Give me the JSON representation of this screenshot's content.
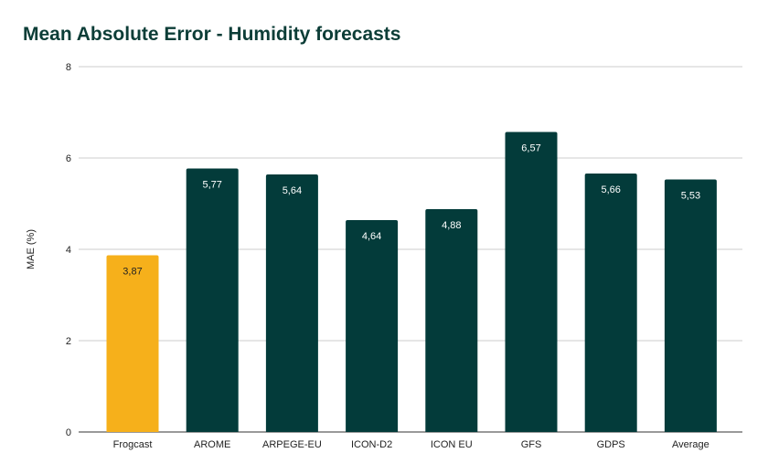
{
  "chart_data": {
    "type": "bar",
    "title": "Mean Absolute Error - Humidity forecasts",
    "xlabel": "",
    "ylabel": "MAE (%)",
    "ylim": [
      0,
      8
    ],
    "yticks": [
      0,
      2,
      4,
      6,
      8
    ],
    "grid": true,
    "categories": [
      "Frogcast",
      "AROME",
      "ARPEGE-EU",
      "ICON-D2",
      "ICON EU",
      "GFS",
      "GDPS",
      "Average"
    ],
    "values": [
      3.87,
      5.77,
      5.64,
      4.64,
      4.88,
      6.57,
      5.66,
      5.53
    ],
    "data_labels": [
      "3,87",
      "5,77",
      "5,64",
      "4,64",
      "4,88",
      "6,57",
      "5,66",
      "5,53"
    ],
    "colors": {
      "highlight": "#f6b01b",
      "default": "#033b3a",
      "title": "#0c3d37"
    },
    "highlight_category": "Frogcast"
  }
}
